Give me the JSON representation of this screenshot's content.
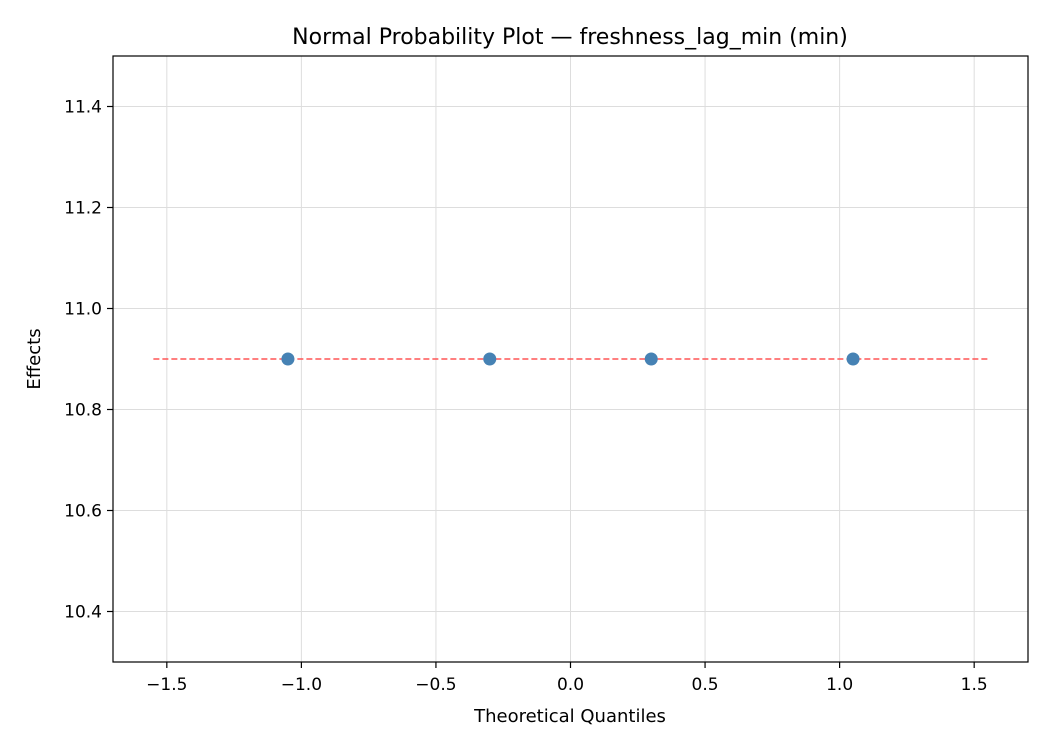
{
  "chart_data": {
    "type": "scatter",
    "title": "Normal Probability Plot — freshness_lag_min (min)",
    "xlabel": "Theoretical Quantiles",
    "ylabel": "Effects",
    "xlim": [
      -1.7,
      1.7
    ],
    "ylim": [
      10.3,
      11.5
    ],
    "xticks": [
      -1.5,
      -1.0,
      -0.5,
      0.0,
      0.5,
      1.0,
      1.5
    ],
    "xtick_labels": [
      "−1.5",
      "−1.0",
      "−0.5",
      "0.0",
      "0.5",
      "1.0",
      "1.5"
    ],
    "yticks": [
      10.4,
      10.6,
      10.8,
      11.0,
      11.2,
      11.4
    ],
    "ytick_labels": [
      "10.4",
      "10.6",
      "10.8",
      "11.0",
      "11.2",
      "11.4"
    ],
    "grid": true,
    "series": [
      {
        "kind": "points",
        "color": "#4682b4",
        "points": [
          {
            "x": -1.05,
            "y": 10.9
          },
          {
            "x": -0.3,
            "y": 10.9
          },
          {
            "x": 0.3,
            "y": 10.9
          },
          {
            "x": 1.05,
            "y": 10.9
          }
        ]
      },
      {
        "kind": "reference-line",
        "style": "dashed",
        "color": "#ff5555",
        "points": [
          {
            "x": -1.55,
            "y": 10.9
          },
          {
            "x": 1.55,
            "y": 10.9
          }
        ]
      }
    ]
  }
}
